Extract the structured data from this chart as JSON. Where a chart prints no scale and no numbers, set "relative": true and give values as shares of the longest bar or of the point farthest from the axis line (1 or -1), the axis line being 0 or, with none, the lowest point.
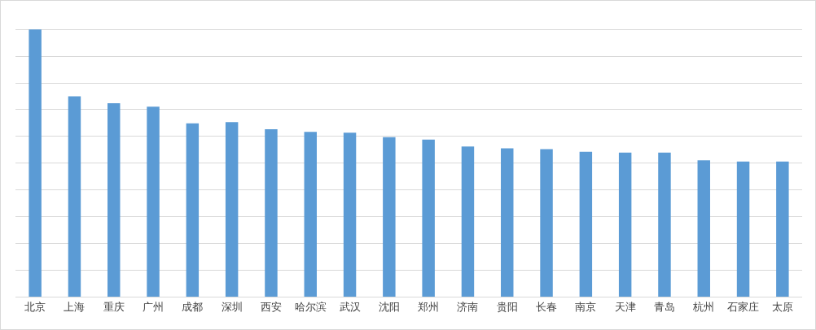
{
  "chart_data": {
    "type": "bar",
    "relative": true,
    "grid": true,
    "color": "#5b9bd5",
    "categories": [
      "北京",
      "上海",
      "重庆",
      "广州",
      "成都",
      "深圳",
      "西安",
      "哈尔滨",
      "武汉",
      "沈阳",
      "郑州",
      "济南",
      "贵阳",
      "长春",
      "南京",
      "天津",
      "青岛",
      "杭州",
      "石家庄",
      "太原"
    ],
    "values": [
      1,
      0.75,
      0.724,
      0.711,
      0.649,
      0.653,
      0.627,
      0.617,
      0.614,
      0.597,
      0.588,
      0.562,
      0.555,
      0.552,
      0.542,
      0.539,
      0.539,
      0.51,
      0.506,
      0.506
    ]
  }
}
